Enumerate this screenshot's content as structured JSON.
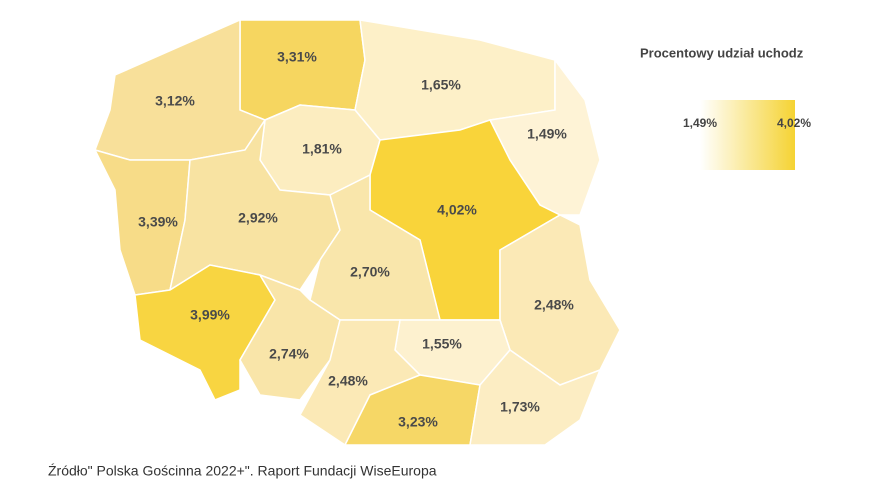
{
  "regions": [
    {
      "label": "3,31%",
      "color": "#f6d660"
    },
    {
      "label": "1,65%",
      "color": "#fdf0c8"
    },
    {
      "label": "3,12%",
      "color": "#f8e09a"
    },
    {
      "label": "1,81%",
      "color": "#fcedc0"
    },
    {
      "label": "1,49%",
      "color": "#fef3d6"
    },
    {
      "label": "3,39%",
      "color": "#f7dc88"
    },
    {
      "label": "2,92%",
      "color": "#f8e3a2"
    },
    {
      "label": "4,02%",
      "color": "#f9d43a"
    },
    {
      "label": "2,70%",
      "color": "#f9e6ab"
    },
    {
      "label": "2,48%",
      "color": "#fbe9b6"
    },
    {
      "label": "3,99%",
      "color": "#f8d541"
    },
    {
      "label": "2,74%",
      "color": "#f9e5a9"
    },
    {
      "label": "1,55%",
      "color": "#fdf1cf"
    },
    {
      "label": "2,48%",
      "color": "#fbe9b6"
    },
    {
      "label": "3,23%",
      "color": "#f6d766"
    },
    {
      "label": "1,73%",
      "color": "#fcedc3"
    }
  ],
  "legend": {
    "title": "Procentowy udział uchodz",
    "min_label": "1,49%",
    "max_label": "4,02%",
    "min_color": "#ffffff",
    "max_color": "#f5d333"
  },
  "source": "Źródło\" Polska Gościnna 2022+\". Raport Fundacji WiseEuropa"
}
